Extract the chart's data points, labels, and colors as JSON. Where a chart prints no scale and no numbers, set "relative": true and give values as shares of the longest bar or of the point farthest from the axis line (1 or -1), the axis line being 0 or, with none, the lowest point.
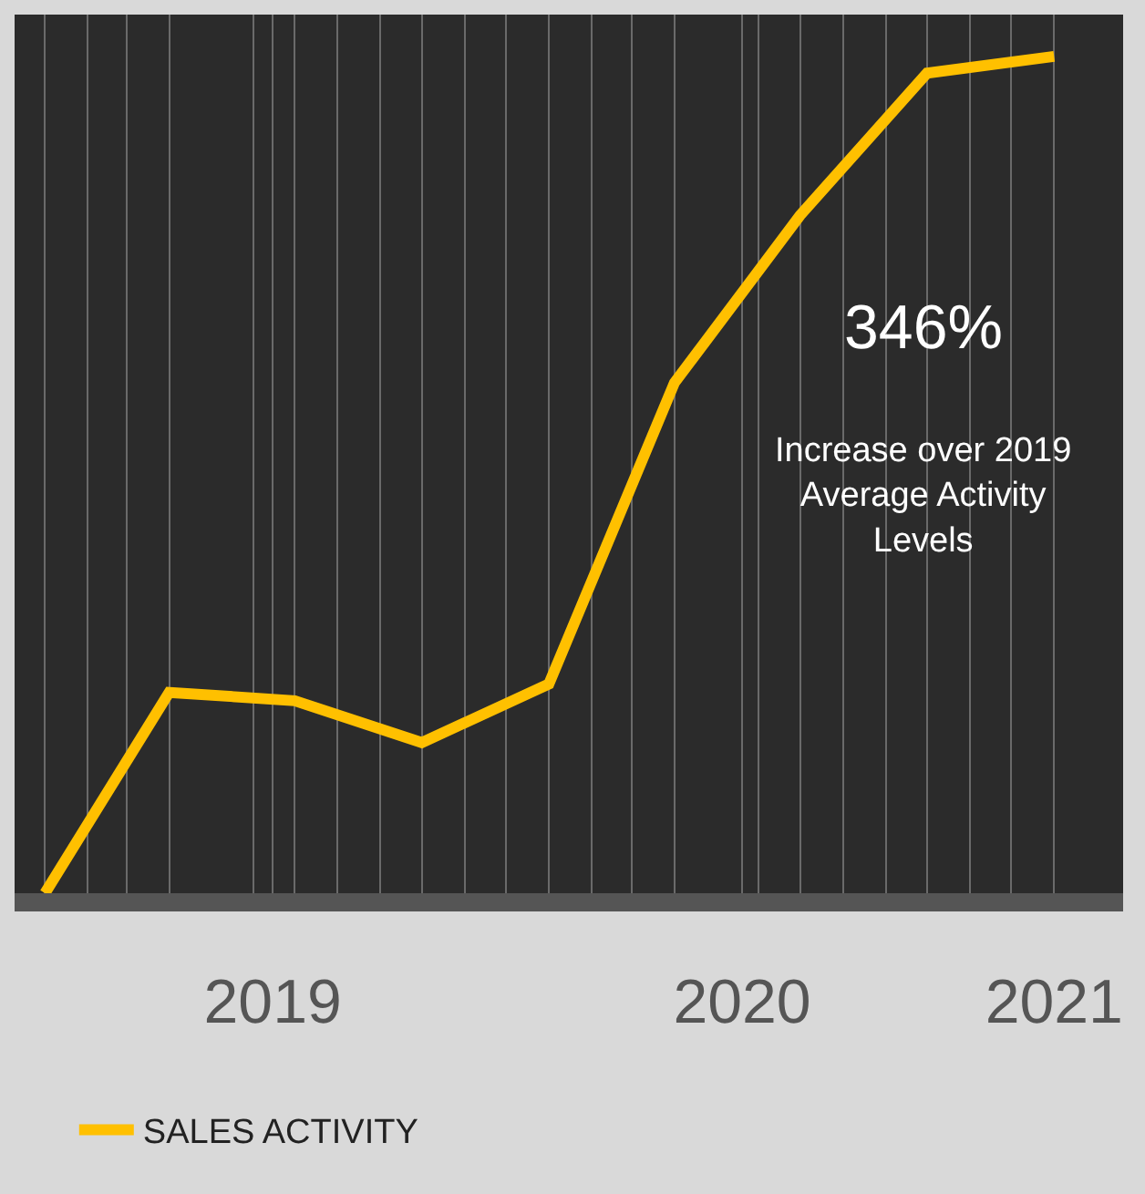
{
  "chart_data": {
    "type": "line",
    "relative": true,
    "x": [
      "2019-01",
      "2019-04",
      "2019-07",
      "2019-10",
      "2020-01",
      "2020-04",
      "2020-07",
      "2020-10",
      "2021-01"
    ],
    "xlim": [
      "2018-12-10",
      "2021-02-20"
    ],
    "xticks": [
      {
        "value": "2019-06-15",
        "label": "2019"
      },
      {
        "value": "2020-05-20",
        "label": "2020"
      },
      {
        "value": "2021-01-01",
        "label": "2021"
      },
      {
        "value": "2019-01",
        "label": null
      },
      {
        "value": "2019-02",
        "label": null
      },
      {
        "value": "2019-03",
        "label": null
      },
      {
        "value": "2019-04",
        "label": null
      },
      {
        "value": "2019-06",
        "label": null
      },
      {
        "value": "2019-07",
        "label": null
      },
      {
        "value": "2019-08",
        "label": null
      },
      {
        "value": "2019-09",
        "label": null
      },
      {
        "value": "2019-10",
        "label": null
      },
      {
        "value": "2019-11",
        "label": null
      },
      {
        "value": "2019-12",
        "label": null
      },
      {
        "value": "2020-01",
        "label": null
      },
      {
        "value": "2020-02",
        "label": null
      },
      {
        "value": "2020-03",
        "label": null
      },
      {
        "value": "2020-04",
        "label": null
      },
      {
        "value": "2020-06",
        "label": null
      },
      {
        "value": "2020-07",
        "label": null
      },
      {
        "value": "2020-08",
        "label": null
      },
      {
        "value": "2020-09",
        "label": null
      },
      {
        "value": "2020-10",
        "label": null
      },
      {
        "value": "2020-11",
        "label": null
      },
      {
        "value": "2020-12",
        "label": null
      }
    ],
    "series": [
      {
        "name": "SALES ACTIVITY",
        "color": "#ffc000",
        "values": [
          0,
          0.24,
          0.23,
          0.18,
          0.25,
          0.61,
          0.81,
          0.98,
          1
        ]
      }
    ],
    "annotations": [
      "346%",
      "Increase over 2019\nAverage Activity\nLevels"
    ],
    "grid": "x",
    "legend": "bottom left",
    "marker": "none",
    "line_style": "solid"
  }
}
